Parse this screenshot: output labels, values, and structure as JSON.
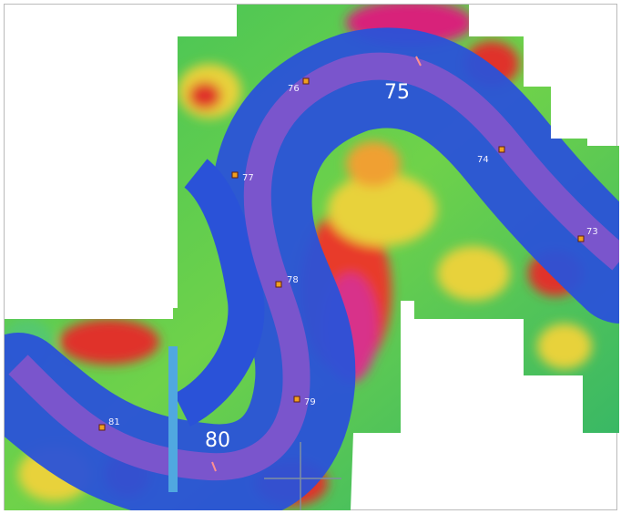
{
  "map": {
    "major_labels": [
      "75",
      "80"
    ],
    "mile_markers": [
      "73",
      "74",
      "76",
      "77",
      "78",
      "79",
      "81"
    ]
  }
}
